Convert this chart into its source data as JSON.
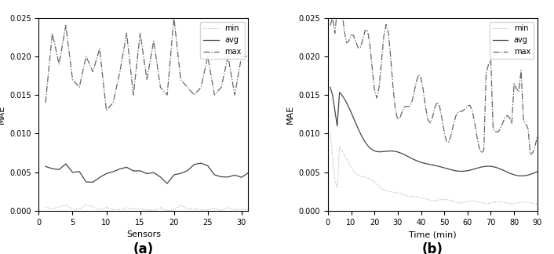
{
  "fig_width": 7.06,
  "fig_height": 3.24,
  "dpi": 100,
  "bg_color": "#ffffff",
  "panel_a": {
    "xlabel": "Sensors",
    "ylabel": "MAE",
    "xlim": [
      0,
      31
    ],
    "ylim": [
      0,
      0.025
    ],
    "yticks": [
      0,
      0.005,
      0.01,
      0.015,
      0.02,
      0.025
    ],
    "xticks": [
      0,
      5,
      10,
      15,
      20,
      25,
      30
    ],
    "label": "(a)"
  },
  "panel_b": {
    "xlabel": "Time (min)",
    "ylabel": "MAE",
    "xlim": [
      0,
      90
    ],
    "ylim": [
      0,
      0.025
    ],
    "yticks": [
      0,
      0.005,
      0.01,
      0.015,
      0.02,
      0.025
    ],
    "xticks": [
      0,
      10,
      20,
      30,
      40,
      50,
      60,
      70,
      80,
      90
    ],
    "label": "(b)"
  },
  "line_styles": {
    "min": {
      "color": "#aaaaaa",
      "linestyle": ":",
      "linewidth": 0.8,
      "label": "min"
    },
    "avg": {
      "color": "#444444",
      "linestyle": "-",
      "linewidth": 0.9,
      "label": "avg"
    },
    "max": {
      "color": "#666666",
      "linestyle": "-.",
      "linewidth": 0.9,
      "label": "max"
    }
  },
  "legend": {
    "loc": "upper right",
    "fontsize": 7,
    "frameon": true
  }
}
